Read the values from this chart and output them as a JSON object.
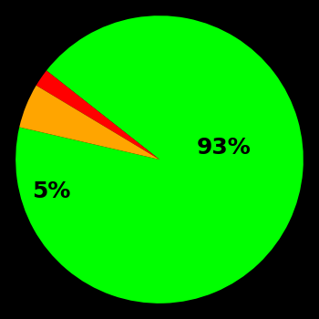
{
  "slices": [
    93,
    2,
    5
  ],
  "colors": [
    "#00ff00",
    "#ff0000",
    "#ffa500"
  ],
  "labels": [
    "93%",
    "",
    "5%"
  ],
  "background_color": "#000000",
  "text_color": "#000000",
  "label_fontsize": 18,
  "label_fontweight": "bold",
  "startangle": 167,
  "figsize": [
    3.5,
    3.5
  ],
  "dpi": 100
}
